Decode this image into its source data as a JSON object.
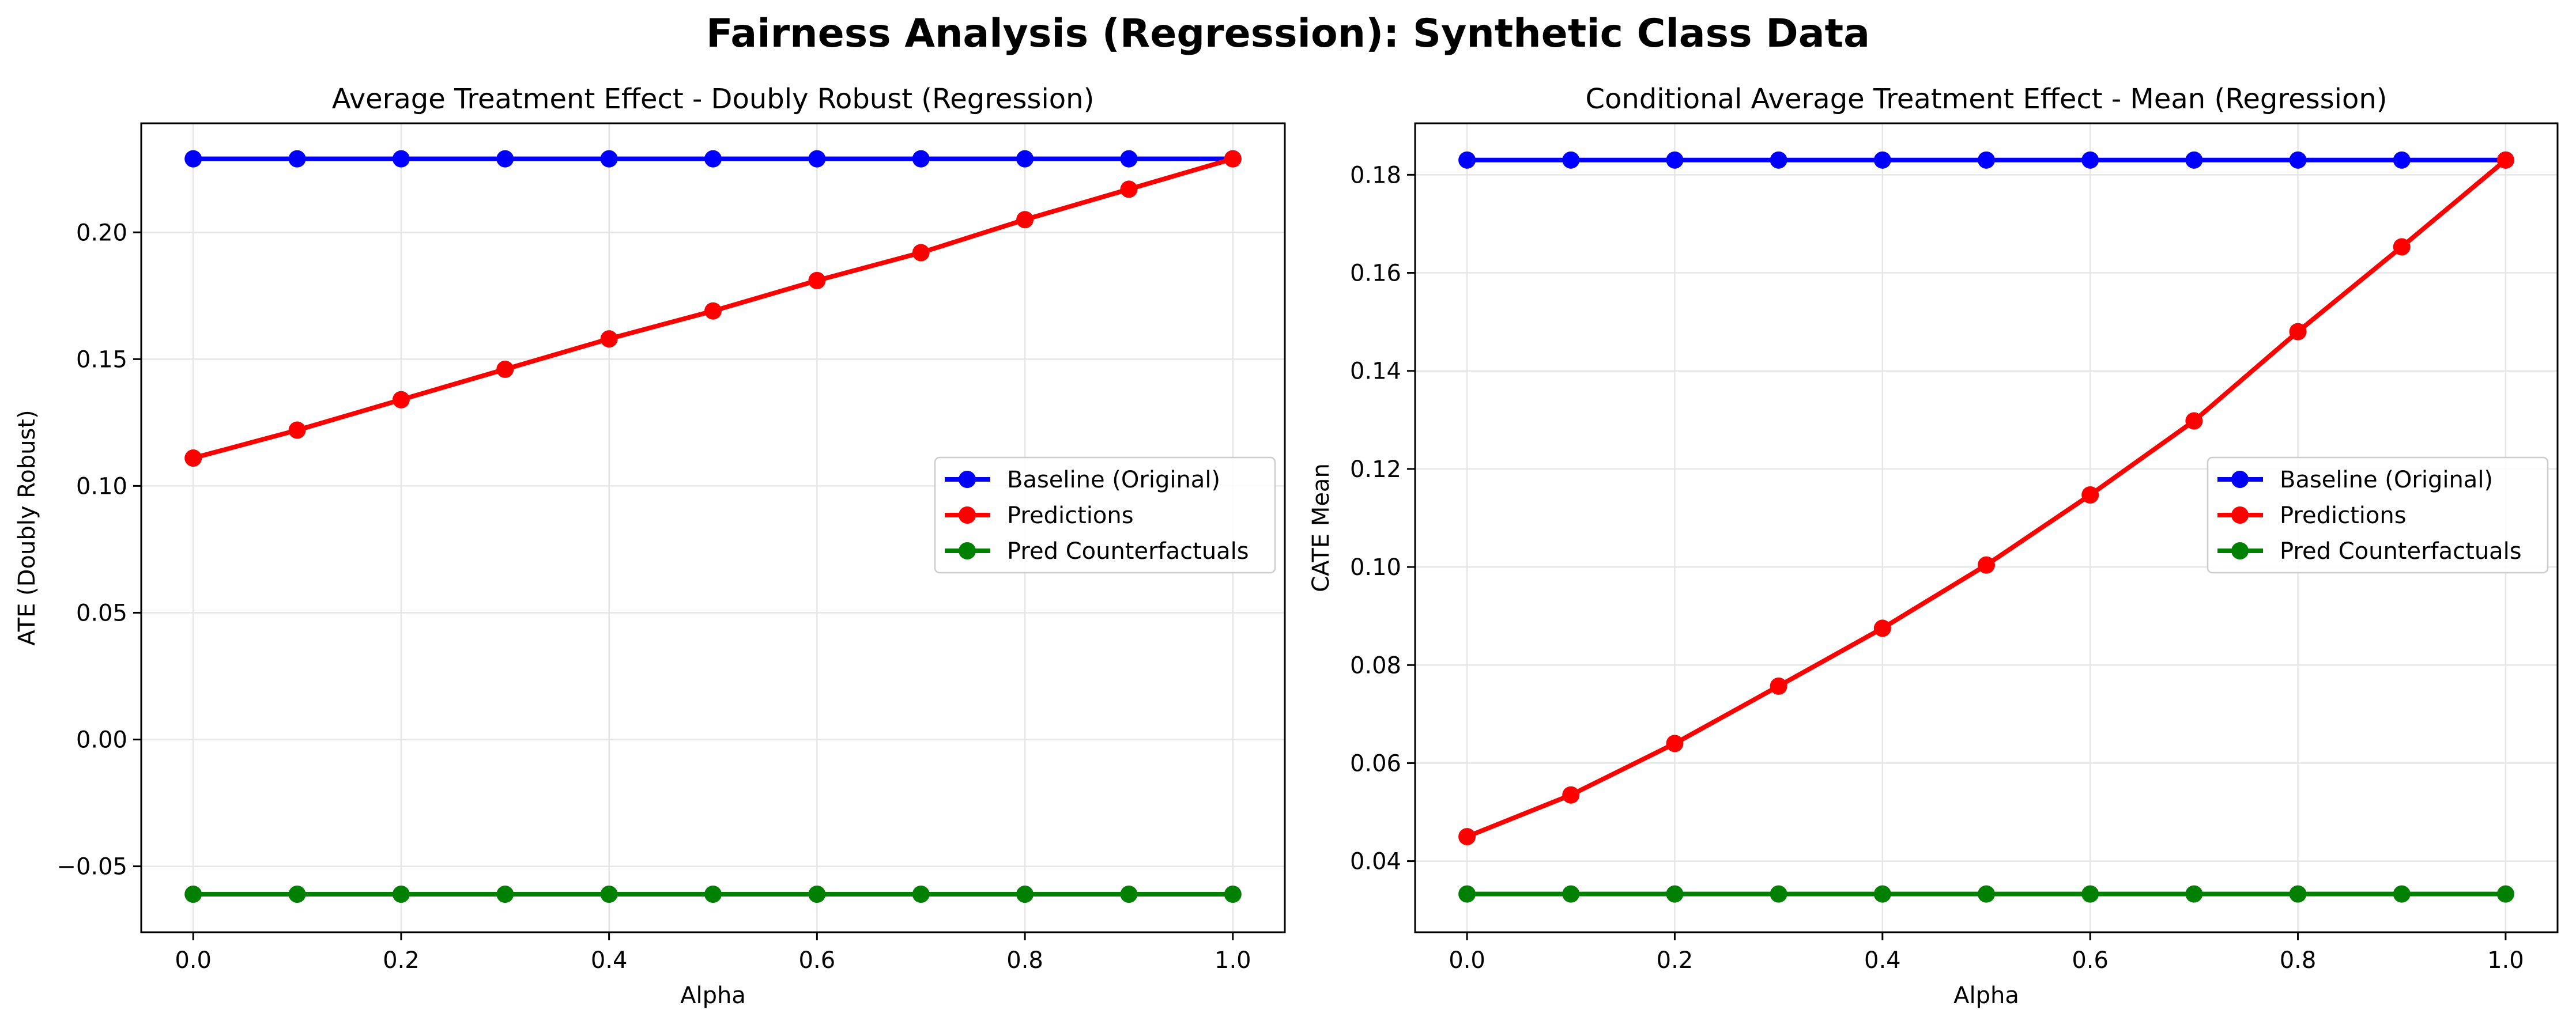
{
  "figure_title": "Fairness Analysis (Regression): Synthetic Class Data",
  "colors": {
    "baseline": "#0000ff",
    "predictions": "#ff0000",
    "counterfactuals": "#008000",
    "grid": "#e6e6e6",
    "axes": "#000000"
  },
  "chart_data": [
    {
      "type": "line",
      "title": "Average Treatment Effect - Doubly Robust (Regression)",
      "xlabel": "Alpha",
      "ylabel": "ATE (Doubly Robust)",
      "x": [
        0.0,
        0.1,
        0.2,
        0.3,
        0.4,
        0.5,
        0.6,
        0.7,
        0.8,
        0.9,
        1.0
      ],
      "xlim": [
        -0.05,
        1.05
      ],
      "ylim": [
        -0.076,
        0.243
      ],
      "xticks": [
        0.0,
        0.2,
        0.4,
        0.6,
        0.8,
        1.0
      ],
      "xtick_labels": [
        "0.0",
        "0.2",
        "0.4",
        "0.6",
        "0.8",
        "1.0"
      ],
      "yticks": [
        -0.05,
        0.0,
        0.05,
        0.1,
        0.15,
        0.2
      ],
      "ytick_labels": [
        "−0.05",
        "0.00",
        "0.05",
        "0.10",
        "0.15",
        "0.20"
      ],
      "grid": true,
      "legend_position": "center-right",
      "series": [
        {
          "name": "Baseline (Original)",
          "color": "#0000ff",
          "values": [
            0.229,
            0.229,
            0.229,
            0.229,
            0.229,
            0.229,
            0.229,
            0.229,
            0.229,
            0.229,
            0.229
          ]
        },
        {
          "name": "Predictions",
          "color": "#ff0000",
          "values": [
            0.111,
            0.122,
            0.134,
            0.146,
            0.158,
            0.169,
            0.181,
            0.192,
            0.205,
            0.217,
            0.229
          ]
        },
        {
          "name": "Pred Counterfactuals",
          "color": "#008000",
          "values": [
            -0.061,
            -0.061,
            -0.061,
            -0.061,
            -0.061,
            -0.061,
            -0.061,
            -0.061,
            -0.061,
            -0.061,
            -0.061
          ]
        }
      ]
    },
    {
      "type": "line",
      "title": "Conditional Average Treatment Effect - Mean (Regression)",
      "xlabel": "Alpha",
      "ylabel": "CATE Mean",
      "x": [
        0.0,
        0.1,
        0.2,
        0.3,
        0.4,
        0.5,
        0.6,
        0.7,
        0.8,
        0.9,
        1.0
      ],
      "xlim": [
        -0.05,
        1.05
      ],
      "ylim": [
        0.0255,
        0.1905
      ],
      "xticks": [
        0.0,
        0.2,
        0.4,
        0.6,
        0.8,
        1.0
      ],
      "xtick_labels": [
        "0.0",
        "0.2",
        "0.4",
        "0.6",
        "0.8",
        "1.0"
      ],
      "yticks": [
        0.04,
        0.06,
        0.08,
        0.1,
        0.12,
        0.14,
        0.16,
        0.18
      ],
      "ytick_labels": [
        "0.04",
        "0.06",
        "0.08",
        "0.10",
        "0.12",
        "0.14",
        "0.16",
        "0.18"
      ],
      "grid": true,
      "legend_position": "center-right",
      "series": [
        {
          "name": "Baseline (Original)",
          "color": "#0000ff",
          "values": [
            0.183,
            0.183,
            0.183,
            0.183,
            0.183,
            0.183,
            0.183,
            0.183,
            0.183,
            0.183,
            0.183
          ]
        },
        {
          "name": "Predictions",
          "color": "#ff0000",
          "values": [
            0.045,
            0.0535,
            0.064,
            0.0757,
            0.0875,
            0.1004,
            0.1147,
            0.1298,
            0.148,
            0.1653,
            0.183
          ]
        },
        {
          "name": "Pred Counterfactuals",
          "color": "#008000",
          "values": [
            0.0333,
            0.0333,
            0.0333,
            0.0333,
            0.0333,
            0.0333,
            0.0333,
            0.0333,
            0.0333,
            0.0333,
            0.0333
          ]
        }
      ]
    }
  ]
}
